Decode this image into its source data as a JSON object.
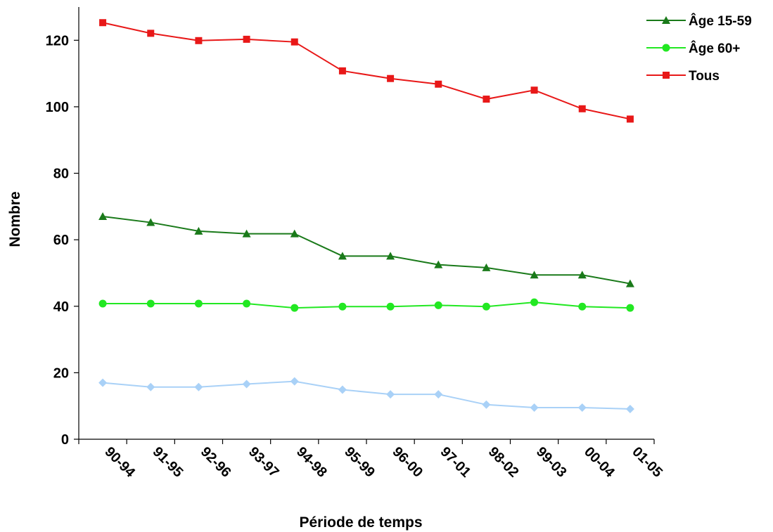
{
  "chart_data": {
    "type": "line",
    "title": "",
    "xlabel": "Période de temps",
    "ylabel": "Nombre",
    "ylim": [
      0,
      130
    ],
    "yticks": [
      0,
      20,
      40,
      60,
      80,
      100,
      120
    ],
    "grid": false,
    "legend_position": "top-right",
    "categories": [
      "90-94",
      "91-95",
      "92-96",
      "93-97",
      "94-98",
      "95-99",
      "96-00",
      "97-01",
      "98-02",
      "99-03",
      "00-04",
      "01-05"
    ],
    "series": [
      {
        "name": "Âge 15-59",
        "color": "#1a7a1a",
        "marker": "triangle",
        "in_legend": true,
        "values": [
          67,
          65.2,
          62.6,
          61.8,
          61.8,
          55.1,
          55.1,
          52.5,
          51.6,
          49.4,
          49.4,
          46.8
        ]
      },
      {
        "name": "Âge 60+",
        "color": "#22e822",
        "marker": "circle",
        "in_legend": true,
        "values": [
          40.8,
          40.8,
          40.8,
          40.8,
          39.5,
          39.9,
          39.9,
          40.3,
          39.9,
          41.2,
          39.9,
          39.5
        ]
      },
      {
        "name": "Tous",
        "color": "#e81818",
        "marker": "square",
        "in_legend": true,
        "values": [
          125.3,
          122.1,
          119.9,
          120.3,
          119.5,
          110.8,
          108.5,
          106.8,
          102.3,
          105,
          99.4,
          96.3
        ]
      },
      {
        "name": "",
        "color": "#a9d1f7",
        "marker": "diamond",
        "in_legend": false,
        "values": [
          17,
          15.7,
          15.7,
          16.6,
          17.4,
          14.9,
          13.5,
          13.5,
          10.4,
          9.5,
          9.5,
          9.1
        ]
      }
    ]
  }
}
